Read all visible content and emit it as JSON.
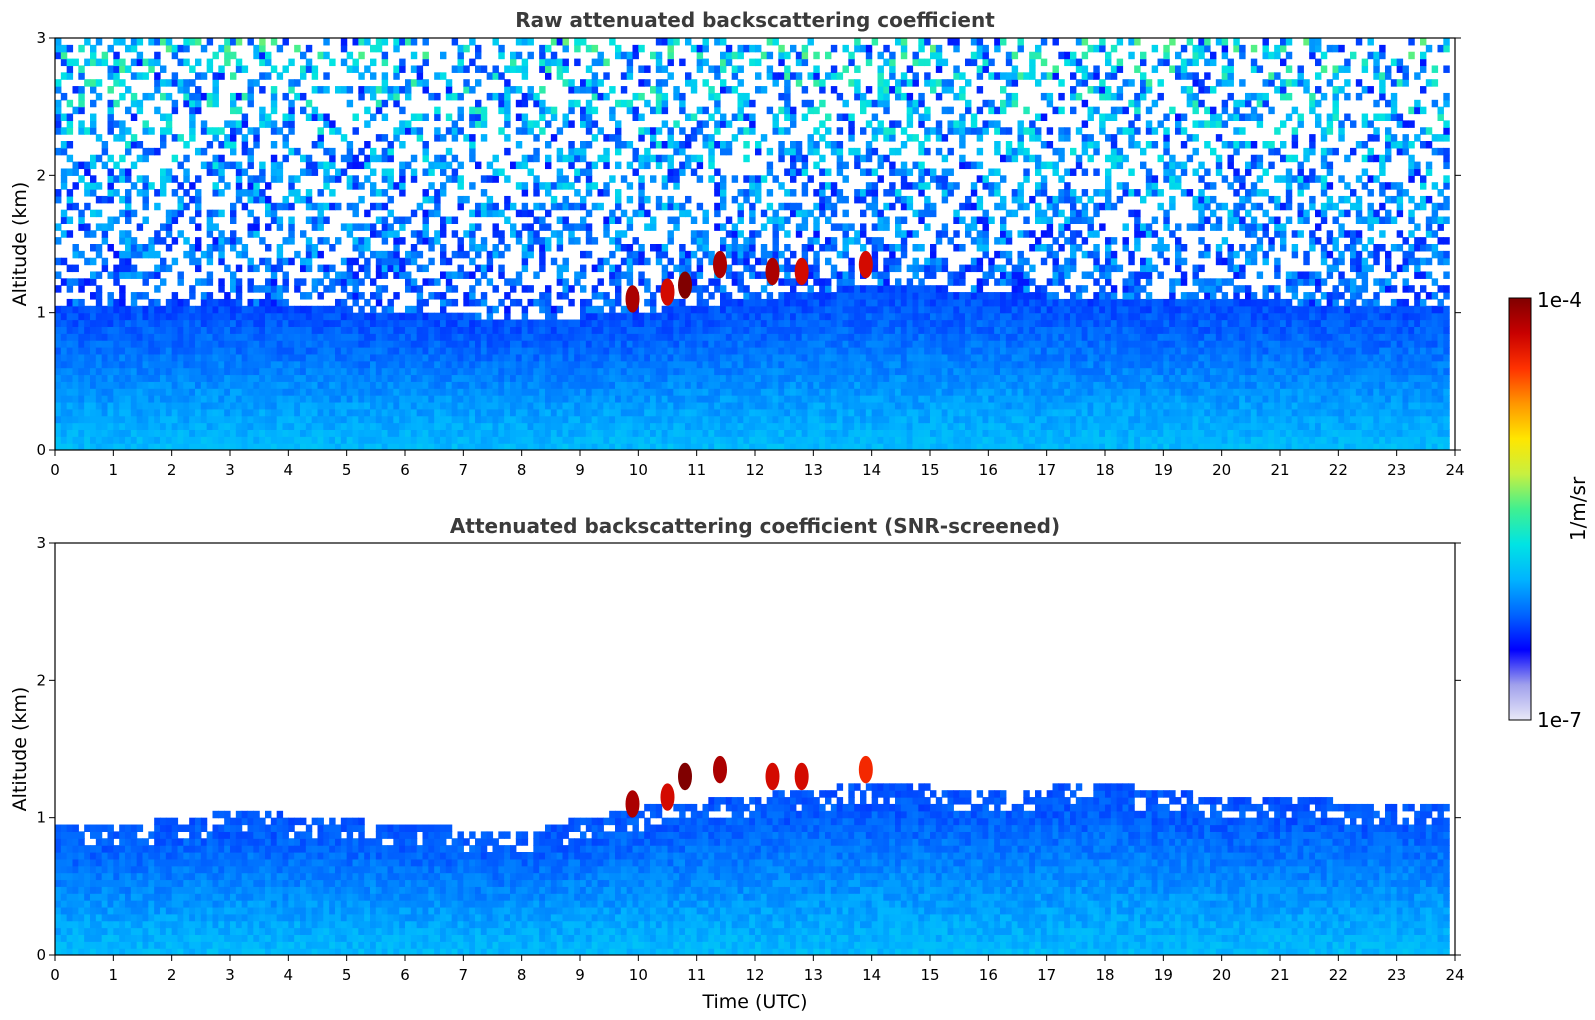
{
  "chart_data": [
    {
      "type": "heatmap",
      "title": "Raw attenuated backscattering coefficient",
      "xlabel": "",
      "ylabel": "Altitude (km)",
      "xlim": [
        0,
        24
      ],
      "ylim": [
        0,
        3
      ],
      "x_ticks": [
        0,
        1,
        2,
        3,
        4,
        5,
        6,
        7,
        8,
        9,
        10,
        11,
        12,
        13,
        14,
        15,
        16,
        17,
        18,
        19,
        20,
        21,
        22,
        23,
        24
      ],
      "y_ticks": [
        0,
        1,
        2,
        3
      ],
      "screened": false,
      "boundary_layer_top_km": [
        {
          "x": 0,
          "y": 1.05
        },
        {
          "x": 3,
          "y": 1.08
        },
        {
          "x": 6,
          "y": 1.0
        },
        {
          "x": 8,
          "y": 0.95
        },
        {
          "x": 10,
          "y": 1.0
        },
        {
          "x": 14,
          "y": 1.2
        },
        {
          "x": 18,
          "y": 1.1
        },
        {
          "x": 24,
          "y": 1.05
        }
      ],
      "cloud_features": [
        {
          "x": 9.9,
          "y": 1.1,
          "level": 0.95
        },
        {
          "x": 10.5,
          "y": 1.15,
          "level": 0.9
        },
        {
          "x": 10.8,
          "y": 1.2,
          "level": 1.0
        },
        {
          "x": 11.4,
          "y": 1.35,
          "level": 0.95
        },
        {
          "x": 12.3,
          "y": 1.3,
          "level": 0.95
        },
        {
          "x": 12.8,
          "y": 1.3,
          "level": 0.9
        },
        {
          "x": 13.9,
          "y": 1.35,
          "level": 0.9
        }
      ]
    },
    {
      "type": "heatmap",
      "title": "Attenuated backscattering coefficient (SNR-screened)",
      "xlabel": "Time (UTC)",
      "ylabel": "Altitude (km)",
      "xlim": [
        0,
        24
      ],
      "ylim": [
        0,
        3
      ],
      "x_ticks": [
        0,
        1,
        2,
        3,
        4,
        5,
        6,
        7,
        8,
        9,
        10,
        11,
        12,
        13,
        14,
        15,
        16,
        17,
        18,
        19,
        20,
        21,
        22,
        23,
        24
      ],
      "y_ticks": [
        0,
        1,
        2,
        3
      ],
      "screened": true,
      "boundary_layer_top_km": [
        {
          "x": 0,
          "y": 0.95
        },
        {
          "x": 2,
          "y": 0.98
        },
        {
          "x": 3,
          "y": 1.05
        },
        {
          "x": 5,
          "y": 1.0
        },
        {
          "x": 7,
          "y": 0.92
        },
        {
          "x": 8,
          "y": 0.88
        },
        {
          "x": 9.5,
          "y": 1.05
        },
        {
          "x": 14,
          "y": 1.25
        },
        {
          "x": 16,
          "y": 1.2
        },
        {
          "x": 18,
          "y": 1.25
        },
        {
          "x": 20,
          "y": 1.15
        },
        {
          "x": 24,
          "y": 1.1
        }
      ],
      "cloud_features": [
        {
          "x": 9.9,
          "y": 1.1,
          "level": 0.95
        },
        {
          "x": 10.5,
          "y": 1.15,
          "level": 0.9
        },
        {
          "x": 10.8,
          "y": 1.3,
          "level": 1.0
        },
        {
          "x": 11.4,
          "y": 1.35,
          "level": 0.95
        },
        {
          "x": 12.3,
          "y": 1.3,
          "level": 0.9
        },
        {
          "x": 12.8,
          "y": 1.3,
          "level": 0.9
        },
        {
          "x": 13.9,
          "y": 1.35,
          "level": 0.85
        }
      ]
    }
  ],
  "colorbar": {
    "label": "1/m/sr",
    "max_label": "1e-4",
    "min_label": "1e-7",
    "range": [
      1e-07,
      0.0001
    ],
    "scale": "log",
    "colors": [
      "#e8e8f8",
      "#a0a0ec",
      "#0000ff",
      "#0064ff",
      "#00b4ff",
      "#00e4e4",
      "#40f090",
      "#c8f040",
      "#ffe600",
      "#ff9600",
      "#ff3200",
      "#c80000",
      "#800000"
    ]
  }
}
